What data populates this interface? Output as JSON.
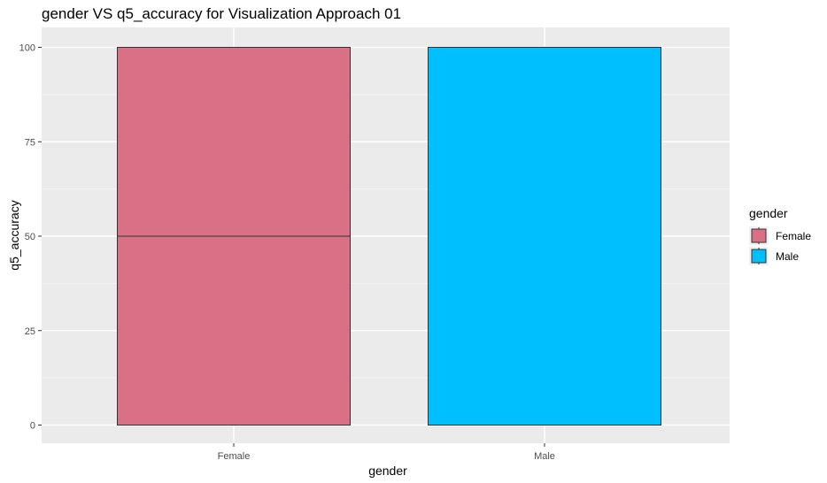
{
  "chart_data": {
    "type": "bar",
    "title": "gender VS q5_accuracy for Visualization Approach 01",
    "xlabel": "gender",
    "ylabel": "q5_accuracy",
    "categories": [
      "Female",
      "Male"
    ],
    "segments": [
      {
        "category": "Female",
        "values": [
          50,
          50
        ],
        "color": "#D97085"
      },
      {
        "category": "Male",
        "values": [
          100
        ],
        "color": "#00BFFF"
      }
    ],
    "ylim": [
      0,
      100
    ],
    "yticks": [
      0,
      25,
      50,
      75,
      100
    ],
    "grid": true,
    "panel_background": "#EBEBEB",
    "legend": {
      "title": "gender",
      "position": "right",
      "items": [
        {
          "label": "Female",
          "color": "#D97085"
        },
        {
          "label": "Male",
          "color": "#00BFFF"
        }
      ]
    }
  }
}
